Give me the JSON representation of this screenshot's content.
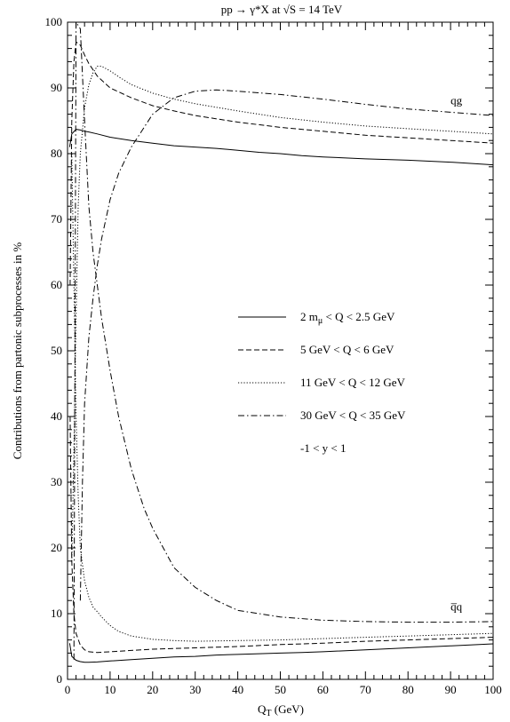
{
  "chart_data": {
    "type": "line",
    "title": "pp → γ*X at √S = 14 TeV",
    "xlabel": "Q_T (GeV)",
    "ylabel": "Contributions from partonic subprocesses in %",
    "xlim": [
      0,
      100
    ],
    "ylim": [
      0,
      100
    ],
    "x_ticks": [
      "0",
      "10",
      "20",
      "30",
      "40",
      "50",
      "60",
      "70",
      "80",
      "90",
      "100"
    ],
    "y_ticks": [
      "0",
      "10",
      "20",
      "30",
      "40",
      "50",
      "60",
      "70",
      "80",
      "90",
      "100"
    ],
    "grid": false,
    "legend_position": "center-right",
    "annotations": [
      {
        "text": "qg",
        "x": 90,
        "y": 87.5
      },
      {
        "text": "q̅q",
        "x": 90,
        "y": 10.5
      }
    ],
    "legend_extra": "-1 < y < 1",
    "series": [
      {
        "name": "2 m_μ < Q < 2.5 GeV",
        "style": "solid",
        "qg": {
          "x": [
            0.5,
            1,
            2,
            3,
            4,
            5,
            7,
            10,
            15,
            20,
            25,
            30,
            35,
            40,
            45,
            50,
            55,
            60,
            70,
            80,
            90,
            100
          ],
          "y": [
            81,
            83,
            83.7,
            83.6,
            83.4,
            83.3,
            83.0,
            82.5,
            82.0,
            81.6,
            81.2,
            81.0,
            80.8,
            80.5,
            80.2,
            80.0,
            79.7,
            79.5,
            79.2,
            79.0,
            78.7,
            78.3
          ]
        },
        "qqbar": {
          "x": [
            0.5,
            1,
            2,
            3,
            4,
            5,
            7,
            10,
            15,
            20,
            25,
            30,
            35,
            40,
            45,
            50,
            55,
            60,
            70,
            80,
            90,
            100
          ],
          "y": [
            5.5,
            3.5,
            2.9,
            2.7,
            2.6,
            2.6,
            2.65,
            2.8,
            3.0,
            3.2,
            3.4,
            3.5,
            3.7,
            3.8,
            3.9,
            4.0,
            4.1,
            4.2,
            4.5,
            4.8,
            5.1,
            5.4
          ]
        }
      },
      {
        "name": "5 GeV < Q < 6 GeV",
        "style": "dashed",
        "qg": {
          "x": [
            0.6,
            1,
            1.5,
            2,
            3,
            4,
            5,
            7,
            10,
            15,
            20,
            25,
            30,
            40,
            50,
            60,
            70,
            80,
            90,
            100
          ],
          "y": [
            60,
            85,
            94,
            97,
            96.5,
            95.0,
            93.7,
            91.8,
            90.0,
            88.5,
            87.3,
            86.5,
            85.8,
            84.8,
            84.0,
            83.4,
            82.8,
            82.4,
            82.0,
            81.6
          ]
        },
        "qqbar": {
          "x": [
            0.6,
            1,
            1.5,
            2,
            3,
            4,
            5,
            7,
            10,
            15,
            20,
            30,
            40,
            50,
            60,
            70,
            80,
            90,
            100
          ],
          "y": [
            40,
            18,
            10,
            7,
            5.2,
            4.5,
            4.2,
            4.1,
            4.2,
            4.4,
            4.6,
            4.8,
            5.0,
            5.3,
            5.5,
            5.8,
            6.0,
            6.2,
            6.4
          ]
        }
      },
      {
        "name": "11 GeV < Q < 12 GeV",
        "style": "dotted",
        "qg": {
          "x": [
            1,
            1.5,
            2,
            2.5,
            3,
            4,
            5,
            6,
            7,
            8,
            10,
            12,
            15,
            20,
            25,
            30,
            40,
            50,
            60,
            70,
            80,
            90,
            100
          ],
          "y": [
            18,
            35,
            55,
            72,
            80,
            87,
            90.5,
            92.3,
            93.3,
            93.3,
            92.6,
            91.7,
            90.5,
            89.2,
            88.3,
            87.6,
            86.5,
            85.5,
            84.8,
            84.2,
            83.8,
            83.4,
            83.0
          ]
        },
        "qqbar": {
          "x": [
            1,
            1.5,
            2,
            2.5,
            3,
            4,
            5,
            6,
            7,
            8,
            10,
            12,
            15,
            20,
            25,
            30,
            40,
            50,
            60,
            70,
            80,
            90,
            100
          ],
          "y": [
            80,
            60,
            40,
            28,
            20,
            15,
            12.5,
            11,
            10.3,
            9.5,
            8.2,
            7.3,
            6.6,
            6.1,
            5.9,
            5.8,
            5.9,
            6.0,
            6.2,
            6.4,
            6.6,
            6.8,
            7.0
          ]
        }
      },
      {
        "name": "30 GeV < Q < 35 GeV",
        "style": "dashdot",
        "qg": {
          "x": [
            3,
            3.5,
            4,
            5,
            6,
            7,
            8,
            10,
            12,
            15,
            18,
            20,
            25,
            30,
            35,
            40,
            50,
            60,
            70,
            80,
            90,
            100
          ],
          "y": [
            12,
            30,
            42,
            52,
            58,
            63,
            67,
            73,
            77,
            81,
            84,
            86,
            88.5,
            89.5,
            89.7,
            89.5,
            89,
            88.3,
            87.5,
            86.8,
            86.3,
            85.8
          ]
        },
        "qqbar": {
          "x": [
            1.5,
            2,
            3,
            4,
            5,
            6,
            7,
            8,
            10,
            12,
            15,
            18,
            20,
            25,
            30,
            35,
            40,
            50,
            60,
            70,
            80,
            90,
            100
          ],
          "y": [
            3,
            100,
            99,
            85,
            72,
            65,
            60,
            55,
            47,
            40,
            32,
            26,
            23,
            17,
            14,
            12,
            10.5,
            9.5,
            9.0,
            8.8,
            8.7,
            8.7,
            8.8
          ]
        }
      }
    ]
  }
}
